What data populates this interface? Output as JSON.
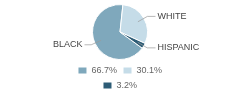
{
  "chart_data": {
    "type": "pie",
    "categories": [
      "BLACK",
      "WHITE",
      "HISPANIC"
    ],
    "values": [
      66.7,
      30.1,
      3.2
    ],
    "value_labels": [
      "66.7%",
      "30.1%",
      "3.2%"
    ],
    "colors": [
      "#7fa8bc",
      "#c5dce8",
      "#2d5c76"
    ],
    "legend": "bottom"
  }
}
